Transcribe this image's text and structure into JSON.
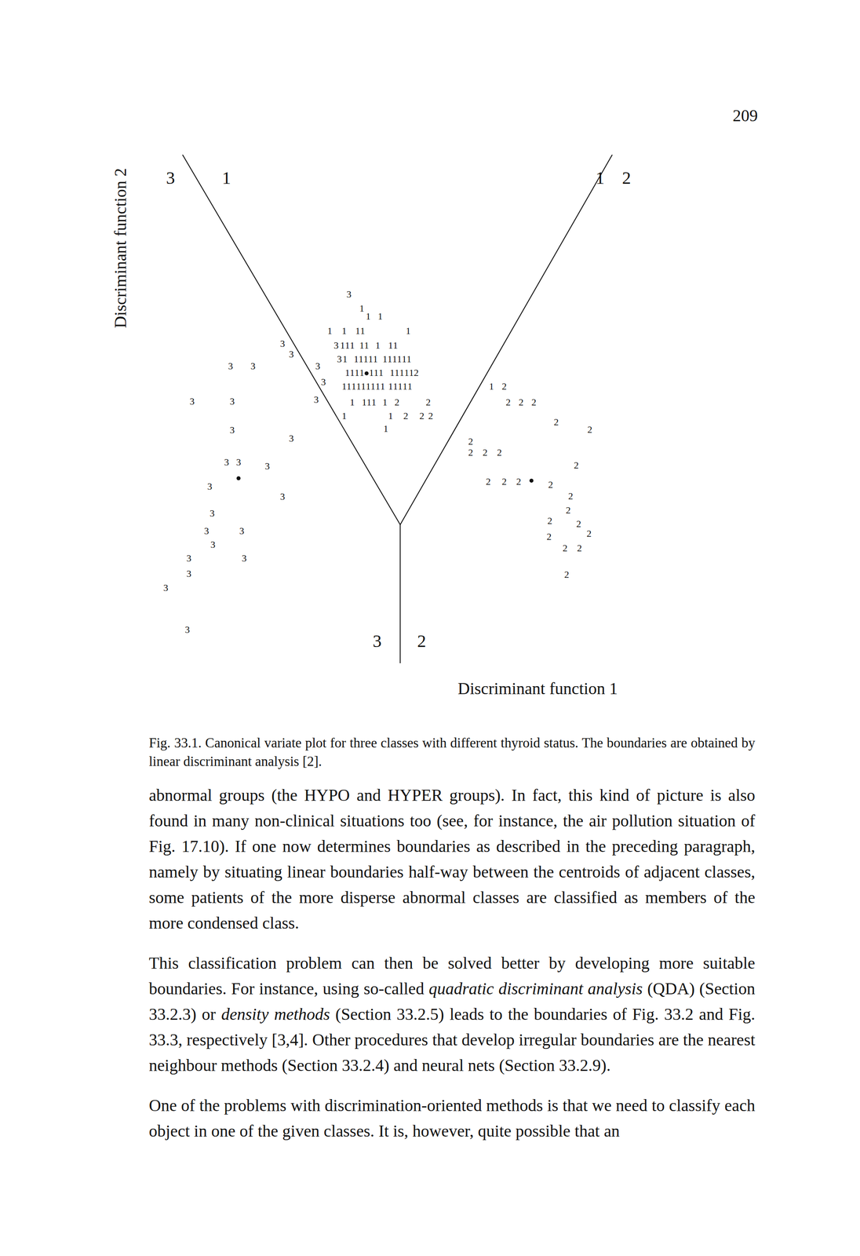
{
  "page_number": "209",
  "chart_data": {
    "type": "scatter",
    "x_label": "Discriminant function 1",
    "y_label": "Discriminant function 2",
    "xlim": [
      0,
      632
    ],
    "ylim": [
      0,
      635
    ],
    "tick_labels": false,
    "grid": false,
    "series": [
      {
        "name": "1",
        "marker": "text",
        "x": [
          266,
          274,
          289,
          226,
          244,
          261,
          267,
          324,
          242,
          248,
          254,
          266,
          272,
          286,
          302,
          308,
          245,
          259,
          265,
          271,
          277,
          283,
          295,
          301,
          307,
          313,
          319,
          325,
          248,
          254,
          260,
          266,
          278,
          284,
          290,
          304,
          310,
          316,
          322,
          328,
          244,
          250,
          256,
          262,
          268,
          274,
          280,
          286,
          292,
          302,
          308,
          314,
          320,
          326,
          428,
          254,
          269,
          275,
          281,
          295,
          244,
          302,
          296
        ],
        "y": [
          442,
          432,
          432,
          414,
          414,
          414,
          414,
          414,
          396,
          396,
          396,
          396,
          396,
          396,
          396,
          396,
          379,
          379,
          379,
          379,
          379,
          379,
          379,
          379,
          379,
          379,
          379,
          379,
          362,
          362,
          362,
          362,
          362,
          362,
          362,
          362,
          362,
          362,
          362,
          362,
          345,
          345,
          345,
          345,
          345,
          345,
          345,
          345,
          345,
          345,
          345,
          345,
          345,
          345,
          345,
          325,
          325,
          325,
          325,
          325,
          308,
          308,
          292
        ]
      },
      {
        "name": "2",
        "marker": "text",
        "x": [
          334,
          444,
          310,
          349,
          449,
          465,
          481,
          321,
          341,
          352,
          509,
          551,
          402,
          402,
          420,
          438,
          534,
          424,
          444,
          462,
          502,
          527,
          524,
          501,
          537,
          550,
          500,
          520,
          538,
          522
        ],
        "y": [
          362,
          345,
          325,
          325,
          325,
          325,
          325,
          308,
          308,
          308,
          300,
          291,
          276,
          262,
          262,
          262,
          246,
          226,
          226,
          226,
          222,
          208,
          190,
          177,
          173,
          161,
          157,
          143,
          143,
          110
        ]
      },
      {
        "name": "3",
        "marker": "text",
        "x": [
          250,
          167,
          178,
          211,
          234,
          238,
          218,
          209,
          102,
          130,
          54,
          104,
          104,
          178,
          97,
          112,
          148,
          76,
          167,
          79,
          72,
          116,
          80,
          50,
          119,
          50,
          21,
          48
        ],
        "y": [
          460,
          398,
          385,
          370,
          396,
          379,
          350,
          328,
          370,
          370,
          326,
          326,
          290,
          280,
          250,
          250,
          245,
          220,
          207,
          186,
          164,
          164,
          147,
          130,
          130,
          111,
          93,
          41
        ]
      }
    ],
    "centroids": {
      "marker": "dot",
      "x": [
        272,
        478,
        112
      ],
      "y": [
        362,
        228,
        231
      ]
    },
    "boundaries": [
      {
        "line_style": "solid",
        "x": [
          42,
          314,
          579
        ],
        "y": [
          635,
          173,
          635
        ]
      },
      {
        "line_style": "solid",
        "x": [
          314,
          314
        ],
        "y": [
          173,
          0
        ]
      }
    ],
    "region_labels": [
      {
        "text": "3",
        "x": 27,
        "y": 606
      },
      {
        "text": "1",
        "x": 97,
        "y": 606
      },
      {
        "text": "1",
        "x": 564,
        "y": 606
      },
      {
        "text": "2",
        "x": 597,
        "y": 606
      },
      {
        "text": "3",
        "x": 285,
        "y": 28
      },
      {
        "text": "2",
        "x": 341,
        "y": 28
      }
    ]
  },
  "caption": "Fig. 33.1. Canonical variate plot for three classes with different thyroid status. The boundaries are obtained by linear discriminant analysis [2].",
  "paragraphs": [
    [
      {
        "text": "abnormal groups (the HYPO and HYPER groups). In fact, this kind of picture is also found in many non-clinical situations too (see, for instance, the air pollution situation of Fig. 17.10). If one now determines boundaries as described in the preceding paragraph, namely by situating linear boundaries half-way between the centroids of adjacent classes, some patients of the more disperse abnormal classes are classified as members of the more condensed class.",
        "italic": false
      }
    ],
    [
      {
        "text": "This classification problem can then be solved better by developing more suitable boundaries. For instance, using so-called ",
        "italic": false
      },
      {
        "text": "quadratic discriminant analysis",
        "italic": true
      },
      {
        "text": " (QDA) (Section 33.2.3) or ",
        "italic": false
      },
      {
        "text": "density methods",
        "italic": true
      },
      {
        "text": " (Section 33.2.5) leads to the boundaries of Fig. 33.2 and Fig. 33.3, respectively [3,4]. Other procedures that develop irregular boundaries are the nearest neighbour methods (Section 33.2.4) and neural nets (Section 33.2.9).",
        "italic": false
      }
    ],
    [
      {
        "text": "One of the problems with discrimination-oriented methods is that we need to classify each object in one of the given classes. It is, however, quite possible that an",
        "italic": false
      }
    ]
  ]
}
